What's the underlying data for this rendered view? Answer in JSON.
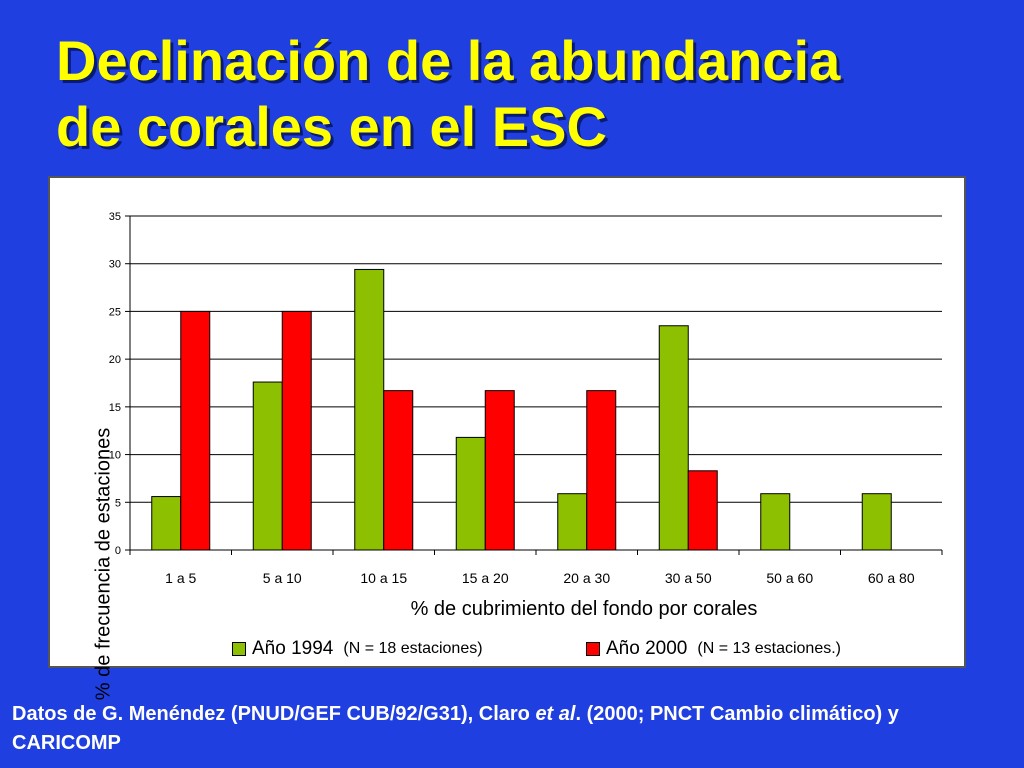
{
  "title": {
    "line1": "Declinación de la abundancia",
    "line2": "de corales en el ESC"
  },
  "chart_data": {
    "type": "bar",
    "title": "Declinación de la abundancia de corales en el ESC",
    "xlabel": "% de cubrimiento del fondo por corales",
    "ylabel": "% de frecuencia de estaciones",
    "ylim": [
      0,
      35
    ],
    "yticks": [
      0,
      5,
      10,
      15,
      20,
      25,
      30,
      35
    ],
    "grid": true,
    "legend_position": "bottom",
    "categories": [
      "1 a 5",
      "5 a 10",
      "10 a 15",
      "15 a 20",
      "20 a 30",
      "30 a 50",
      "50 a 60",
      "60 a 80"
    ],
    "series": [
      {
        "name": "Año 1994",
        "note": "(N = 18 estaciones)",
        "color": "#8cc000",
        "values": [
          5.6,
          17.6,
          29.4,
          11.8,
          5.9,
          23.5,
          5.9,
          5.9
        ]
      },
      {
        "name": "Año 2000",
        "note": "(N = 13 estaciones.)",
        "color": "#ff0000",
        "values": [
          25,
          25,
          16.7,
          16.7,
          16.7,
          8.3,
          0,
          0
        ]
      }
    ]
  },
  "footer": {
    "text_part1": "Datos de G. Menéndez (PNUD/GEF CUB/92/G31), Claro ",
    "text_italic": "et al",
    "text_part2": ". (2000; PNCT Cambio climático) y CARICOMP"
  }
}
